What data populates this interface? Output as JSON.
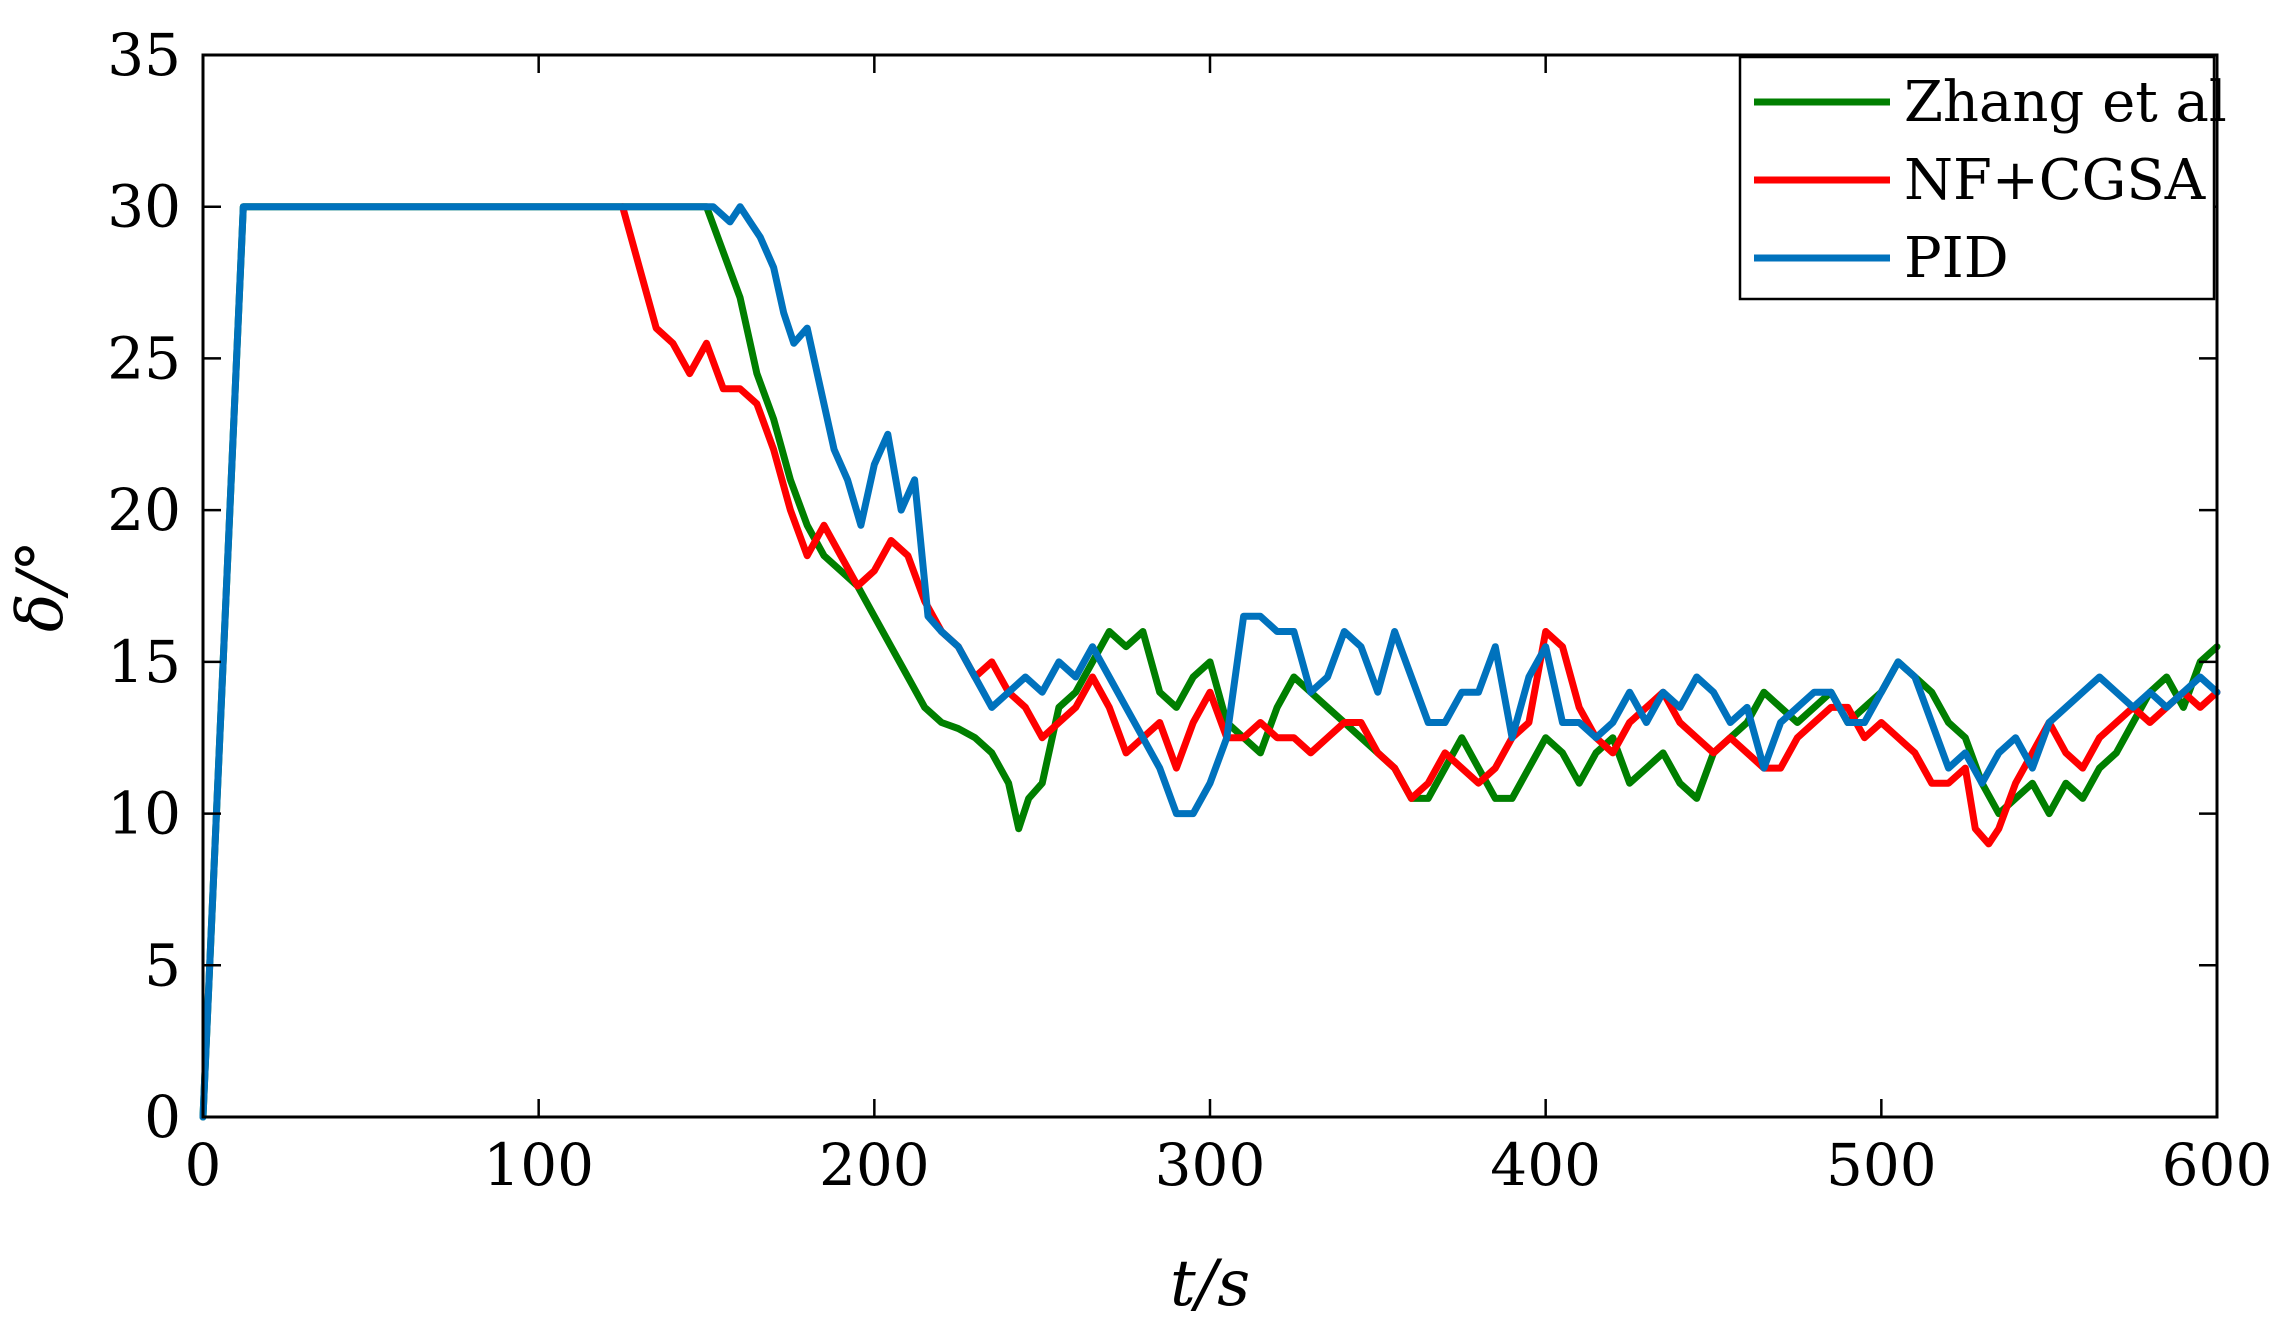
{
  "chart_data": {
    "type": "line",
    "title": "",
    "xlabel": "t/s",
    "ylabel": "δ/°",
    "xlim": [
      0,
      600
    ],
    "ylim": [
      0,
      35
    ],
    "xticks": [
      "0",
      "100",
      "200",
      "300",
      "400",
      "500",
      "600"
    ],
    "yticks": [
      "0",
      "5",
      "10",
      "15",
      "20",
      "25",
      "30",
      "35"
    ],
    "grid": false,
    "legend_position": "top-right",
    "series": [
      {
        "name": "Zhang et al",
        "color": "#007F00",
        "x": [
          0,
          12,
          150,
          155,
          160,
          165,
          170,
          175,
          180,
          185,
          190,
          195,
          200,
          205,
          210,
          215,
          220,
          225,
          230,
          235,
          240,
          243,
          246,
          250,
          255,
          260,
          265,
          270,
          275,
          280,
          285,
          290,
          295,
          300,
          305,
          310,
          315,
          320,
          325,
          330,
          335,
          340,
          345,
          350,
          355,
          360,
          365,
          370,
          375,
          380,
          385,
          390,
          395,
          400,
          405,
          410,
          415,
          420,
          425,
          430,
          435,
          440,
          445,
          450,
          455,
          460,
          465,
          470,
          475,
          480,
          485,
          490,
          495,
          500,
          505,
          510,
          515,
          520,
          525,
          530,
          535,
          540,
          545,
          550,
          555,
          560,
          565,
          570,
          575,
          580,
          585,
          590,
          595,
          600
        ],
        "y": [
          0,
          30,
          30,
          28.5,
          27,
          24.5,
          23,
          21,
          19.5,
          18.5,
          18,
          17.5,
          16.5,
          15.5,
          14.5,
          13.5,
          13,
          12.8,
          12.5,
          12,
          11,
          9.5,
          10.5,
          11,
          13.5,
          14,
          15,
          16,
          15.5,
          16,
          14,
          13.5,
          14.5,
          15,
          13,
          12.5,
          12,
          13.5,
          14.5,
          14,
          13.5,
          13,
          12.5,
          12,
          11.5,
          10.5,
          10.5,
          11.5,
          12.5,
          11.5,
          10.5,
          10.5,
          11.5,
          12.5,
          12,
          11,
          12,
          12.5,
          11,
          11.5,
          12,
          11,
          10.5,
          12,
          12.5,
          13,
          14,
          13.5,
          13,
          13.5,
          14,
          13,
          13.5,
          14,
          15,
          14.5,
          14,
          13,
          12.5,
          11,
          10,
          10.5,
          11,
          10,
          11,
          10.5,
          11.5,
          12,
          13,
          14,
          14.5,
          13.5,
          15,
          15.5
        ]
      },
      {
        "name": "NF+CGSA",
        "color": "#FF0000",
        "x": [
          125,
          130,
          135,
          140,
          145,
          150,
          155,
          160,
          165,
          170,
          175,
          180,
          185,
          190,
          195,
          200,
          205,
          210,
          215,
          220,
          225,
          230,
          235,
          240,
          245,
          250,
          255,
          260,
          265,
          270,
          275,
          280,
          285,
          290,
          295,
          300,
          305,
          310,
          315,
          320,
          325,
          330,
          335,
          340,
          345,
          350,
          355,
          360,
          365,
          370,
          375,
          380,
          385,
          390,
          395,
          400,
          405,
          410,
          415,
          420,
          425,
          430,
          435,
          440,
          445,
          450,
          455,
          460,
          465,
          470,
          475,
          480,
          485,
          490,
          495,
          500,
          505,
          510,
          515,
          520,
          525,
          528,
          532,
          535,
          540,
          545,
          550,
          555,
          560,
          565,
          570,
          575,
          580,
          585,
          590,
          595,
          600
        ],
        "y": [
          30,
          28,
          26,
          25.5,
          24.5,
          25.5,
          24,
          24,
          23.5,
          22,
          20,
          18.5,
          19.5,
          18.5,
          17.5,
          18,
          19,
          18.5,
          17,
          16,
          15.5,
          14.5,
          15,
          14,
          13.5,
          12.5,
          13,
          13.5,
          14.5,
          13.5,
          12,
          12.5,
          13,
          11.5,
          13,
          14,
          12.5,
          12.5,
          13,
          12.5,
          12.5,
          12,
          12.5,
          13,
          13,
          12,
          11.5,
          10.5,
          11,
          12,
          11.5,
          11,
          11.5,
          12.5,
          13,
          16,
          15.5,
          13.5,
          12.5,
          12,
          13,
          13.5,
          14,
          13,
          12.5,
          12,
          12.5,
          12,
          11.5,
          11.5,
          12.5,
          13,
          13.5,
          13.5,
          12.5,
          13,
          12.5,
          12,
          11,
          11,
          11.5,
          9.5,
          9,
          9.5,
          11,
          12,
          13,
          12,
          11.5,
          12.5,
          13,
          13.5,
          13,
          13.5,
          14,
          13.5,
          14
        ]
      },
      {
        "name": "PID",
        "color": "#0072BD",
        "x": [
          0,
          12,
          152,
          157,
          160,
          163,
          166,
          170,
          173,
          176,
          180,
          184,
          188,
          192,
          196,
          200,
          204,
          208,
          212,
          216,
          220,
          225,
          230,
          235,
          240,
          245,
          250,
          255,
          260,
          265,
          270,
          275,
          280,
          285,
          290,
          295,
          300,
          305,
          310,
          315,
          320,
          325,
          330,
          335,
          340,
          345,
          350,
          355,
          360,
          365,
          370,
          375,
          380,
          385,
          390,
          395,
          400,
          405,
          410,
          415,
          420,
          425,
          430,
          435,
          440,
          445,
          450,
          455,
          460,
          465,
          470,
          475,
          480,
          485,
          490,
          495,
          500,
          505,
          510,
          515,
          520,
          525,
          530,
          535,
          540,
          545,
          550,
          555,
          560,
          565,
          570,
          575,
          580,
          585,
          590,
          595,
          600
        ],
        "y": [
          0,
          30,
          30,
          29.5,
          30,
          29.5,
          29,
          28,
          26.5,
          25.5,
          26,
          24,
          22,
          21,
          19.5,
          21.5,
          22.5,
          20,
          21,
          16.5,
          16,
          15.5,
          14.5,
          13.5,
          14,
          14.5,
          14,
          15,
          14.5,
          15.5,
          14.5,
          13.5,
          12.5,
          11.5,
          10,
          10,
          11,
          12.5,
          16.5,
          16.5,
          16,
          16,
          14,
          14.5,
          16,
          15.5,
          14,
          16,
          14.5,
          13,
          13,
          14,
          14,
          15.5,
          12.5,
          14.5,
          15.5,
          13,
          13,
          12.5,
          13,
          14,
          13,
          14,
          13.5,
          14.5,
          14,
          13,
          13.5,
          11.5,
          13,
          13.5,
          14,
          14,
          13,
          13,
          14,
          15,
          14.5,
          13,
          11.5,
          12,
          11,
          12,
          12.5,
          11.5,
          13,
          13.5,
          14,
          14.5,
          14,
          13.5,
          14,
          13.5,
          14,
          14.5,
          14
        ]
      }
    ]
  }
}
